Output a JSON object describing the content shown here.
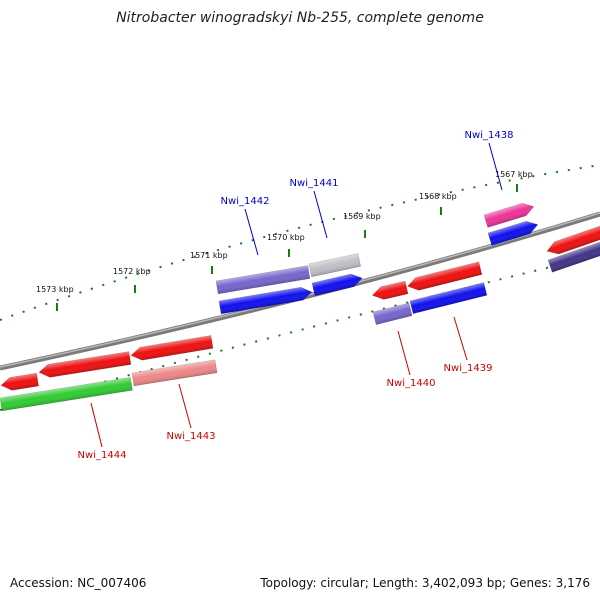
{
  "title": "Nitrobacter winogradskyi Nb-255, complete genome",
  "footer": {
    "accession": "Accession: NC_007406",
    "summary": "Topology: circular; Length: 3,402,093 bp; Genes: 3,176"
  },
  "colors": {
    "backbone": "#7a7a7a",
    "tick_dots": "#1a7a1a",
    "label_forward": "#0000cc",
    "label_reverse": "#cc0000",
    "red": "#ee1111",
    "blue": "#1111ee",
    "purple": "#7766cc",
    "navy": "#443388",
    "green": "#33cc33",
    "pink": "#ee8888",
    "magenta": "#ee3399",
    "gray": "#c0c0c8"
  },
  "scale_ticks": [
    {
      "label": "1573 kbp"
    },
    {
      "label": "1572 kbp"
    },
    {
      "label": "1571 kbp"
    },
    {
      "label": "1570 kbp"
    },
    {
      "label": "1569 kbp"
    },
    {
      "label": "1568 kbp"
    },
    {
      "label": "1567 kbp"
    }
  ],
  "gene_labels": [
    {
      "name": "Nwi_1438",
      "strand": "forward"
    },
    {
      "name": "Nwi_1441",
      "strand": "forward"
    },
    {
      "name": "Nwi_1442",
      "strand": "forward"
    },
    {
      "name": "Nwi_1439",
      "strand": "reverse"
    },
    {
      "name": "Nwi_1440",
      "strand": "reverse"
    },
    {
      "name": "Nwi_1443",
      "strand": "reverse"
    },
    {
      "name": "Nwi_1444",
      "strand": "reverse"
    }
  ],
  "tracks": {
    "outer_forward": [
      {
        "gene": "Nwi_1442",
        "color": "purple",
        "direction": "none"
      },
      {
        "gene": "Nwi_1441",
        "color": "gray",
        "direction": "none"
      },
      {
        "gene": "Nwi_1438",
        "color": "magenta",
        "direction": "right"
      }
    ],
    "inner_forward": [
      {
        "gene": "",
        "color": "blue",
        "direction": "right"
      },
      {
        "gene": "",
        "color": "blue",
        "direction": "right"
      },
      {
        "gene": "",
        "color": "blue",
        "direction": "right"
      },
      {
        "gene": "",
        "color": "red",
        "direction": "left"
      }
    ],
    "inner_reverse": [
      {
        "gene": "",
        "color": "red",
        "direction": "left"
      },
      {
        "gene": "",
        "color": "red",
        "direction": "left"
      },
      {
        "gene": "",
        "color": "red",
        "direction": "left"
      },
      {
        "gene": "",
        "color": "red",
        "direction": "left"
      },
      {
        "gene": "",
        "color": "red",
        "direction": "left"
      }
    ],
    "outer_reverse": [
      {
        "gene": "Nwi_1444",
        "color": "green",
        "direction": "none"
      },
      {
        "gene": "Nwi_1443",
        "color": "pink",
        "direction": "none"
      },
      {
        "gene": "Nwi_1440",
        "color": "purple",
        "direction": "none"
      },
      {
        "gene": "Nwi_1439",
        "color": "blue",
        "direction": "none"
      },
      {
        "gene": "",
        "color": "navy",
        "direction": "none"
      }
    ]
  }
}
